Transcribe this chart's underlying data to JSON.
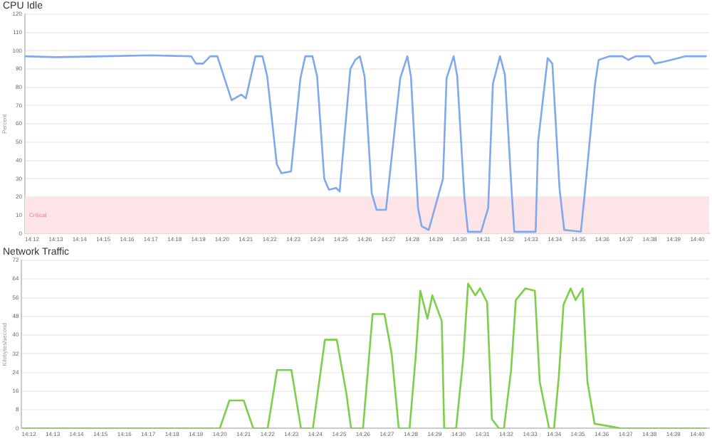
{
  "chart_data": [
    {
      "type": "line",
      "title": "CPU Idle",
      "ylabel": "Percent",
      "xlim": [
        14.195,
        14.675
      ],
      "ylim": [
        0,
        120
      ],
      "yticks": [
        0,
        10,
        20,
        30,
        40,
        50,
        60,
        70,
        80,
        90,
        100,
        110,
        120
      ],
      "xticks": [
        {
          "value": 14.2,
          "label": "14:12"
        },
        {
          "value": 14.2167,
          "label": "14:13"
        },
        {
          "value": 14.2333,
          "label": "14:14"
        },
        {
          "value": 14.25,
          "label": "14:15"
        },
        {
          "value": 14.2667,
          "label": "14:16"
        },
        {
          "value": 14.2833,
          "label": "14:17"
        },
        {
          "value": 14.3,
          "label": "14:18"
        },
        {
          "value": 14.3167,
          "label": "14:19"
        },
        {
          "value": 14.3333,
          "label": "14:20"
        },
        {
          "value": 14.35,
          "label": "14:21"
        },
        {
          "value": 14.3667,
          "label": "14:22"
        },
        {
          "value": 14.3833,
          "label": "14:23"
        },
        {
          "value": 14.4,
          "label": "14:24"
        },
        {
          "value": 14.4167,
          "label": "14:25"
        },
        {
          "value": 14.4333,
          "label": "14:26"
        },
        {
          "value": 14.45,
          "label": "14:27"
        },
        {
          "value": 14.4667,
          "label": "14:28"
        },
        {
          "value": 14.4833,
          "label": "14:29"
        },
        {
          "value": 14.5,
          "label": "14:30"
        },
        {
          "value": 14.5167,
          "label": "14:31"
        },
        {
          "value": 14.5333,
          "label": "14:32"
        },
        {
          "value": 14.55,
          "label": "14:33"
        },
        {
          "value": 14.5667,
          "label": "14:34"
        },
        {
          "value": 14.5833,
          "label": "14:35"
        },
        {
          "value": 14.6,
          "label": "14:36"
        },
        {
          "value": 14.6167,
          "label": "14:37"
        },
        {
          "value": 14.6333,
          "label": "14:38"
        },
        {
          "value": 14.65,
          "label": "14:39"
        },
        {
          "value": 14.6667,
          "label": "14:40"
        }
      ],
      "grid": "y",
      "bands": [
        {
          "axis": "y",
          "from": 0,
          "to": 20,
          "label": "Critical",
          "color": "#fde4e6"
        }
      ],
      "series": [
        {
          "color": "#80a8ec",
          "x": [
            14.195,
            14.2167,
            14.25,
            14.2833,
            14.3117,
            14.315,
            14.32,
            14.325,
            14.33,
            14.34,
            14.3467,
            14.35,
            14.3567,
            14.3617,
            14.365,
            14.3717,
            14.375,
            14.3817,
            14.3883,
            14.3917,
            14.3967,
            14.4,
            14.405,
            14.4083,
            14.4133,
            14.4158,
            14.4233,
            14.4267,
            14.43,
            14.4333,
            14.4383,
            14.4417,
            14.4483,
            14.4583,
            14.4633,
            14.4658,
            14.4708,
            14.4733,
            14.4783,
            14.4883,
            14.4908,
            14.4958,
            14.4983,
            14.5033,
            14.5058,
            14.515,
            14.52,
            14.5233,
            14.5283,
            14.5317,
            14.5367,
            14.5383,
            14.5533,
            14.555,
            14.5617,
            14.565,
            14.57,
            14.5733,
            14.585,
            14.5875,
            14.595,
            14.5975,
            14.605,
            14.6142,
            14.6183,
            14.6233,
            14.6333,
            14.6367,
            14.6433,
            14.6533,
            14.6583,
            14.6733
          ],
          "values": [
            97,
            96.5,
            97,
            97.5,
            97,
            93,
            93,
            97,
            97,
            73,
            76,
            74,
            97,
            97,
            86,
            38,
            33,
            34,
            85,
            97,
            97,
            86,
            30,
            24,
            25,
            23,
            90,
            95,
            97,
            86,
            22,
            13,
            13,
            85,
            97,
            86,
            14,
            4,
            2,
            30,
            85,
            97,
            86,
            20,
            1,
            1,
            14,
            82,
            97,
            87,
            20,
            1,
            1,
            50,
            96,
            93,
            25,
            2,
            1,
            20,
            82,
            95,
            97,
            97,
            95,
            97,
            97,
            93,
            94,
            96,
            97,
            97
          ]
        }
      ]
    },
    {
      "type": "line",
      "title": "Network Traffic",
      "ylabel": "Kilobytes/second",
      "xlim": [
        14.195,
        14.675
      ],
      "ylim": [
        0,
        72
      ],
      "yticks": [
        0,
        8,
        16,
        24,
        32,
        40,
        48,
        56,
        64,
        72
      ],
      "xticks": [
        {
          "value": 14.2,
          "label": "14:12"
        },
        {
          "value": 14.2167,
          "label": "14:13"
        },
        {
          "value": 14.2333,
          "label": "14:14"
        },
        {
          "value": 14.25,
          "label": "14:15"
        },
        {
          "value": 14.2667,
          "label": "14:16"
        },
        {
          "value": 14.2833,
          "label": "14:17"
        },
        {
          "value": 14.3,
          "label": "14:18"
        },
        {
          "value": 14.3167,
          "label": "14:19"
        },
        {
          "value": 14.3333,
          "label": "14:20"
        },
        {
          "value": 14.35,
          "label": "14:21"
        },
        {
          "value": 14.3667,
          "label": "14:22"
        },
        {
          "value": 14.3833,
          "label": "14:23"
        },
        {
          "value": 14.4,
          "label": "14:24"
        },
        {
          "value": 14.4167,
          "label": "14:25"
        },
        {
          "value": 14.4333,
          "label": "14:26"
        },
        {
          "value": 14.45,
          "label": "14:27"
        },
        {
          "value": 14.4667,
          "label": "14:28"
        },
        {
          "value": 14.4833,
          "label": "14:29"
        },
        {
          "value": 14.5,
          "label": "14:30"
        },
        {
          "value": 14.5167,
          "label": "14:31"
        },
        {
          "value": 14.5333,
          "label": "14:32"
        },
        {
          "value": 14.55,
          "label": "14:33"
        },
        {
          "value": 14.5667,
          "label": "14:34"
        },
        {
          "value": 14.5833,
          "label": "14:35"
        },
        {
          "value": 14.6,
          "label": "14:36"
        },
        {
          "value": 14.6167,
          "label": "14:37"
        },
        {
          "value": 14.6333,
          "label": "14:38"
        },
        {
          "value": 14.65,
          "label": "14:39"
        },
        {
          "value": 14.6667,
          "label": "14:40"
        }
      ],
      "grid": "y",
      "series": [
        {
          "color": "#7dcf4a",
          "x": [
            14.195,
            14.3333,
            14.34,
            14.35,
            14.3567,
            14.3667,
            14.3733,
            14.3833,
            14.39,
            14.3983,
            14.4067,
            14.415,
            14.4217,
            14.425,
            14.4333,
            14.44,
            14.4483,
            14.4533,
            14.4583,
            14.4658,
            14.47,
            14.4733,
            14.4783,
            14.4817,
            14.4883,
            14.49,
            14.4983,
            14.5033,
            14.5067,
            14.5117,
            14.515,
            14.52,
            14.5233,
            14.5283,
            14.5317,
            14.5367,
            14.54,
            14.5467,
            14.5533,
            14.5567,
            14.5633,
            14.5667,
            14.57,
            14.5733,
            14.5783,
            14.5817,
            14.5867,
            14.59,
            14.595,
            14.605,
            14.6133,
            14.6733
          ],
          "values": [
            0,
            0,
            12,
            12,
            0,
            0,
            25,
            25,
            0,
            0,
            38,
            38,
            15,
            0,
            0,
            49,
            49,
            32,
            0,
            0,
            30,
            59,
            47,
            57,
            46,
            0,
            0,
            30,
            62,
            57,
            60,
            54,
            4,
            0,
            0,
            25,
            55,
            60,
            59,
            20,
            0,
            0,
            22,
            53,
            60,
            55,
            60,
            20,
            2,
            1,
            0,
            0
          ]
        }
      ]
    }
  ]
}
